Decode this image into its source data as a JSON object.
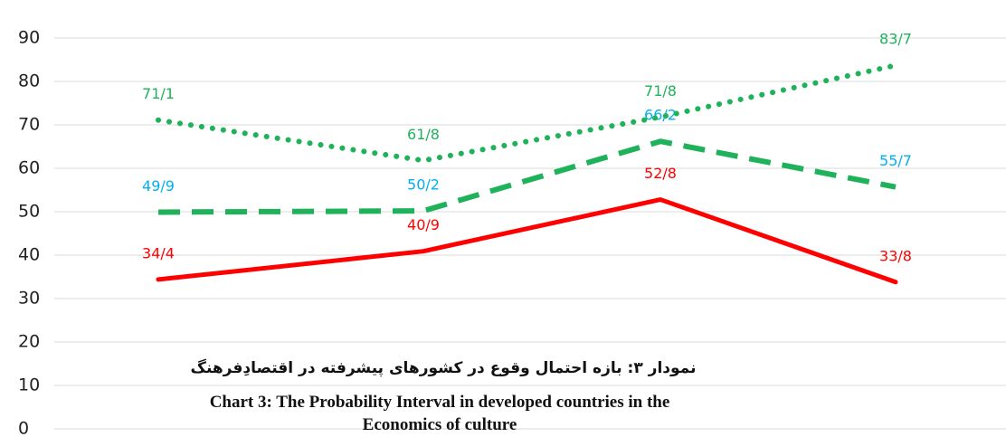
{
  "chart_data": {
    "type": "line",
    "title": "نمودار ۳: بازه احتمال وقوع در کشورهای پیشرفته در اقتصادِفرهنگ",
    "subtitle": [
      "Chart 3: The Probability Interval in developed countries in the",
      "Economics of culture"
    ],
    "categories": [
      null,
      null,
      null,
      null
    ],
    "series": [
      {
        "color": "#ff0000",
        "style": "solid",
        "label_color": "#ff0000",
        "values": [
          34.4,
          40.9,
          52.8,
          33.8
        ],
        "value_labels": [
          "34/4",
          "40/9",
          "52/8",
          "33/8"
        ]
      },
      {
        "color": "#1fb25a",
        "style": "dashed",
        "label_color": "#00b0f0",
        "values": [
          49.9,
          50.2,
          66.2,
          55.7
        ],
        "value_labels": [
          "49/9",
          "50/2",
          "66/2",
          "55/7"
        ]
      },
      {
        "color": "#1fb25a",
        "style": "dotted",
        "label_color": "#1fb25a",
        "values": [
          71.1,
          61.8,
          71.8,
          83.7
        ],
        "value_labels": [
          "71/1",
          "61/8",
          "71/8",
          "83/7"
        ]
      }
    ],
    "ylim": [
      0,
      90
    ],
    "yticks": [
      0,
      10,
      20,
      30,
      40,
      50,
      60,
      70,
      80,
      90
    ],
    "grid": true
  }
}
